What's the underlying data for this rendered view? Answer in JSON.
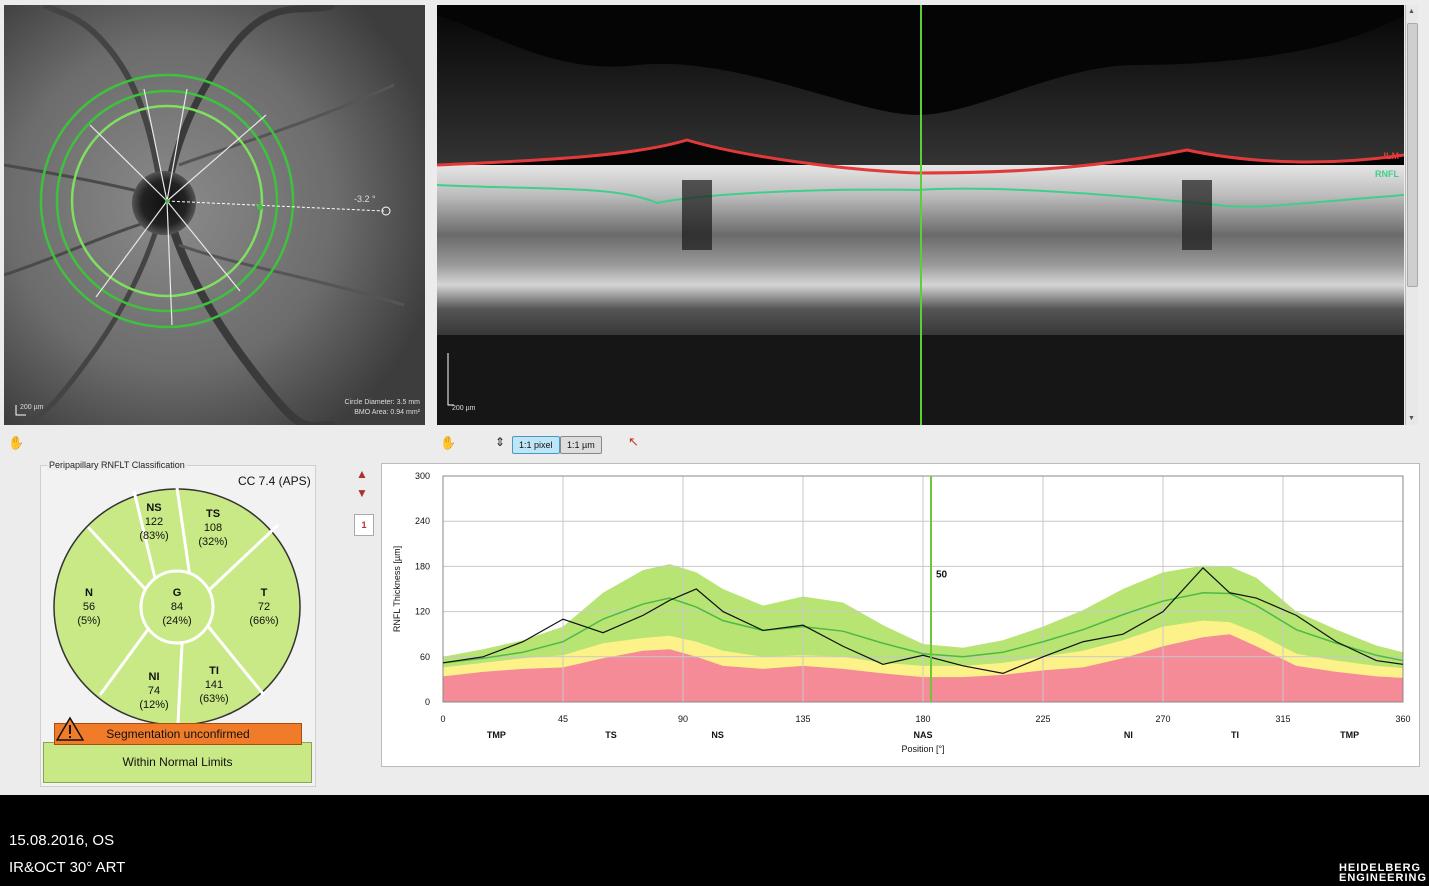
{
  "fundus": {
    "scale_label": "200 µm",
    "angle_label": "-3.2 °",
    "circle_diameter": "Circle Diameter: 3.5 mm",
    "bmo_area": "BMO Area: 0.94 mm²"
  },
  "bscan": {
    "scale_label": "200 µm",
    "layer_ilm": "ILM",
    "layer_rnfl": "RNFL"
  },
  "toolbar": {
    "pixel_button": "1:1 pixel",
    "um_button": "1:1 µm"
  },
  "classification": {
    "title": "Peripapillary RNFLT Classification",
    "version": "CC 7.4 (APS)",
    "sectors": {
      "NS": {
        "label": "NS",
        "value": "122",
        "pct": "(83%)"
      },
      "TS": {
        "label": "TS",
        "value": "108",
        "pct": "(32%)"
      },
      "N": {
        "label": "N",
        "value": "56",
        "pct": "(5%)"
      },
      "G": {
        "label": "G",
        "value": "84",
        "pct": "(24%)"
      },
      "T": {
        "label": "T",
        "value": "72",
        "pct": "(66%)"
      },
      "NI": {
        "label": "NI",
        "value": "74",
        "pct": "(12%)"
      },
      "TI": {
        "label": "TI",
        "value": "141",
        "pct": "(63%)"
      }
    },
    "segmentation_warning": "Segmentation unconfirmed",
    "result": "Within Normal Limits"
  },
  "page_indicator": "1",
  "chart_data": {
    "type": "area",
    "ylabel": "RNFL Thickness [µm]",
    "xlabel": "Position [°]",
    "xlim": [
      0,
      360
    ],
    "ylim": [
      0,
      300
    ],
    "x_ticks": [
      0,
      45,
      90,
      135,
      180,
      225,
      270,
      315,
      360
    ],
    "y_ticks": [
      0,
      60,
      120,
      180,
      240,
      300
    ],
    "sector_labels": [
      {
        "x": 20,
        "label": "TMP"
      },
      {
        "x": 63,
        "label": "TS"
      },
      {
        "x": 103,
        "label": "NS"
      },
      {
        "x": 180,
        "label": "NAS"
      },
      {
        "x": 257,
        "label": "NI"
      },
      {
        "x": 297,
        "label": "TI"
      },
      {
        "x": 340,
        "label": "TMP"
      }
    ],
    "cursor": {
      "x": 183,
      "label": "50"
    },
    "x": [
      0,
      15,
      30,
      45,
      60,
      75,
      85,
      95,
      105,
      120,
      135,
      150,
      165,
      180,
      195,
      210,
      225,
      240,
      255,
      270,
      285,
      295,
      305,
      320,
      335,
      350,
      360
    ],
    "series": [
      {
        "name": "green_upper",
        "values": [
          60,
          70,
          82,
          100,
          145,
          175,
          183,
          172,
          150,
          128,
          140,
          132,
          102,
          77,
          72,
          82,
          100,
          122,
          150,
          172,
          181,
          180,
          165,
          120,
          96,
          75,
          66
        ]
      },
      {
        "name": "yellow_upper",
        "values": [
          46,
          52,
          58,
          62,
          78,
          85,
          88,
          80,
          68,
          60,
          62,
          60,
          52,
          48,
          48,
          52,
          60,
          68,
          82,
          100,
          108,
          106,
          92,
          64,
          55,
          48,
          45
        ]
      },
      {
        "name": "red_upper",
        "values": [
          34,
          40,
          44,
          46,
          58,
          68,
          70,
          60,
          48,
          44,
          48,
          44,
          38,
          33,
          33,
          36,
          42,
          46,
          58,
          74,
          86,
          90,
          74,
          48,
          40,
          34,
          32
        ]
      },
      {
        "name": "normal_mean",
        "values": [
          52,
          58,
          66,
          80,
          110,
          130,
          138,
          126,
          108,
          95,
          100,
          94,
          78,
          64,
          60,
          66,
          80,
          96,
          116,
          134,
          145,
          144,
          128,
          96,
          78,
          62,
          55
        ]
      },
      {
        "name": "patient",
        "values": [
          52,
          60,
          80,
          110,
          92,
          115,
          135,
          150,
          120,
          95,
          102,
          74,
          50,
          62,
          48,
          38,
          60,
          80,
          90,
          120,
          178,
          145,
          138,
          115,
          80,
          55,
          50
        ]
      }
    ],
    "colors": {
      "green": "#b7e473",
      "yellow": "#fdf28a",
      "red": "#f48b97",
      "mean": "#4cba45",
      "patient": "#111111",
      "cursor": "#6cc83a"
    }
  },
  "footer": {
    "date_eye": "15.08.2016, OS",
    "modality": "IR&OCT 30° ART",
    "brand_line1": "HEIDELBERG",
    "brand_line2": "ENGINEERING"
  }
}
